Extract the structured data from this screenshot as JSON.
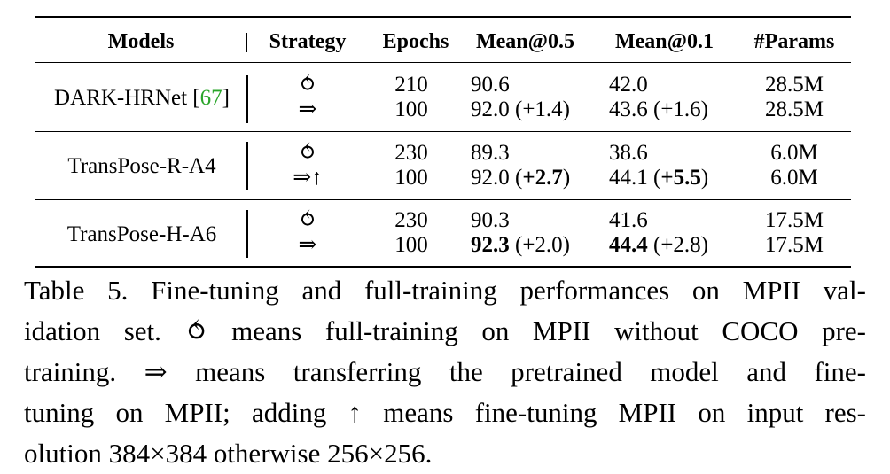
{
  "table": {
    "headers": [
      "Models",
      "Strategy",
      "Epochs",
      "Mean@0.5",
      "Mean@0.1",
      "#Params"
    ],
    "groups": [
      {
        "model": "DARK-HRNet",
        "ref": "67",
        "rows": [
          {
            "strategy": "⥀",
            "epochs": "210",
            "mean05": "90.6",
            "mean05_delta": "",
            "mean01": "42.0",
            "mean01_delta": "",
            "params": "28.5M"
          },
          {
            "strategy": "⇒",
            "epochs": "100",
            "mean05": "92.0",
            "mean05_delta": "(+1.4)",
            "mean01": "43.6",
            "mean01_delta": "(+1.6)",
            "params": "28.5M"
          }
        ]
      },
      {
        "model": "TransPose-R-A4",
        "ref": "",
        "rows": [
          {
            "strategy": "⥀",
            "epochs": "230",
            "mean05": "89.3",
            "mean05_delta": "",
            "mean01": "38.6",
            "mean01_delta": "",
            "params": "6.0M"
          },
          {
            "strategy": "⇒↑",
            "epochs": "100",
            "mean05": "92.0",
            "mean05_delta_open": "(",
            "mean05_delta_bold": "+2.7",
            "mean05_delta_close": ")",
            "mean01": "44.1",
            "mean01_delta_open": "(",
            "mean01_delta_bold": "+5.5",
            "mean01_delta_close": ")",
            "params": "6.0M"
          }
        ]
      },
      {
        "model": "TransPose-H-A6",
        "ref": "",
        "rows": [
          {
            "strategy": "⥀",
            "epochs": "230",
            "mean05": "90.3",
            "mean05_delta": "",
            "mean01": "41.6",
            "mean01_delta": "",
            "params": "17.5M"
          },
          {
            "strategy": "⇒",
            "epochs": "100",
            "mean05": "92.3",
            "mean05_delta": "(+2.0)",
            "mean01": "44.4",
            "mean01_delta": "(+2.8)",
            "params": "17.5M"
          }
        ]
      }
    ]
  },
  "caption": {
    "lines": [
      "Table 5. Fine-tuning and full-training performances on MPII val-",
      "idation set. ⥀ means full-training on MPII without COCO pre-",
      "training. ⇒ means transferring the pretrained model and fine-",
      "tuning on MPII; adding ↑ means fine-tuning MPII on input res-",
      "olution 384×384 otherwise 256×256."
    ]
  }
}
